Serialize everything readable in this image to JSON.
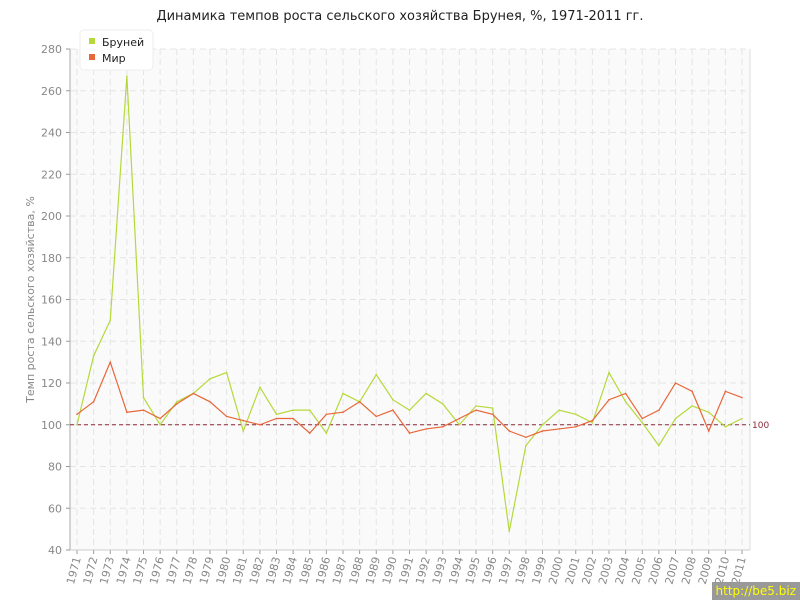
{
  "chart_data": {
    "type": "line",
    "title": "Динамика темпов роста сельского хозяйства Брунея, %, 1971-2011 гг.",
    "ylabel": "Темп роста сельского хозяйства, %",
    "xlabel": "",
    "ylim": [
      40,
      280
    ],
    "yticks": [
      40,
      60,
      80,
      100,
      120,
      140,
      160,
      180,
      200,
      220,
      240,
      260,
      280
    ],
    "grid": true,
    "legend": "top-left",
    "reference_line": {
      "value": 100,
      "label": "100",
      "color": "#8b2a3a"
    },
    "x": [
      "1971",
      "1972",
      "1973",
      "1974",
      "1975",
      "1976",
      "1977",
      "1978",
      "1979",
      "1980",
      "1981",
      "1982",
      "1983",
      "1984",
      "1985",
      "1986",
      "1987",
      "1988",
      "1989",
      "1990",
      "1991",
      "1992",
      "1993",
      "1994",
      "1995",
      "1996",
      "1997",
      "1998",
      "1999",
      "2000",
      "2001",
      "2002",
      "2003",
      "2004",
      "2005",
      "2006",
      "2007",
      "2008",
      "2009",
      "2010",
      "2011"
    ],
    "series": [
      {
        "name": "Бруней",
        "color": "#b5d93a",
        "values": [
          100,
          133,
          150,
          267,
          113,
          100,
          111,
          115,
          122,
          125,
          97,
          118,
          105,
          107,
          107,
          96,
          115,
          111,
          124,
          112,
          107,
          115,
          110,
          100,
          109,
          108,
          49,
          90,
          100,
          107,
          105,
          101,
          125,
          111,
          101,
          90,
          103,
          109,
          106,
          99,
          103
        ]
      },
      {
        "name": "Мир",
        "color": "#e8673a",
        "values": [
          105,
          111,
          130,
          106,
          107,
          103,
          110,
          115,
          111,
          104,
          102,
          100,
          103,
          103,
          96,
          105,
          106,
          111,
          104,
          107,
          96,
          98,
          99,
          103,
          107,
          105,
          97,
          94,
          97,
          98,
          99,
          102,
          112,
          115,
          103,
          107,
          120,
          116,
          97,
          116,
          113
        ]
      }
    ]
  },
  "watermark": "http://be5.biz"
}
